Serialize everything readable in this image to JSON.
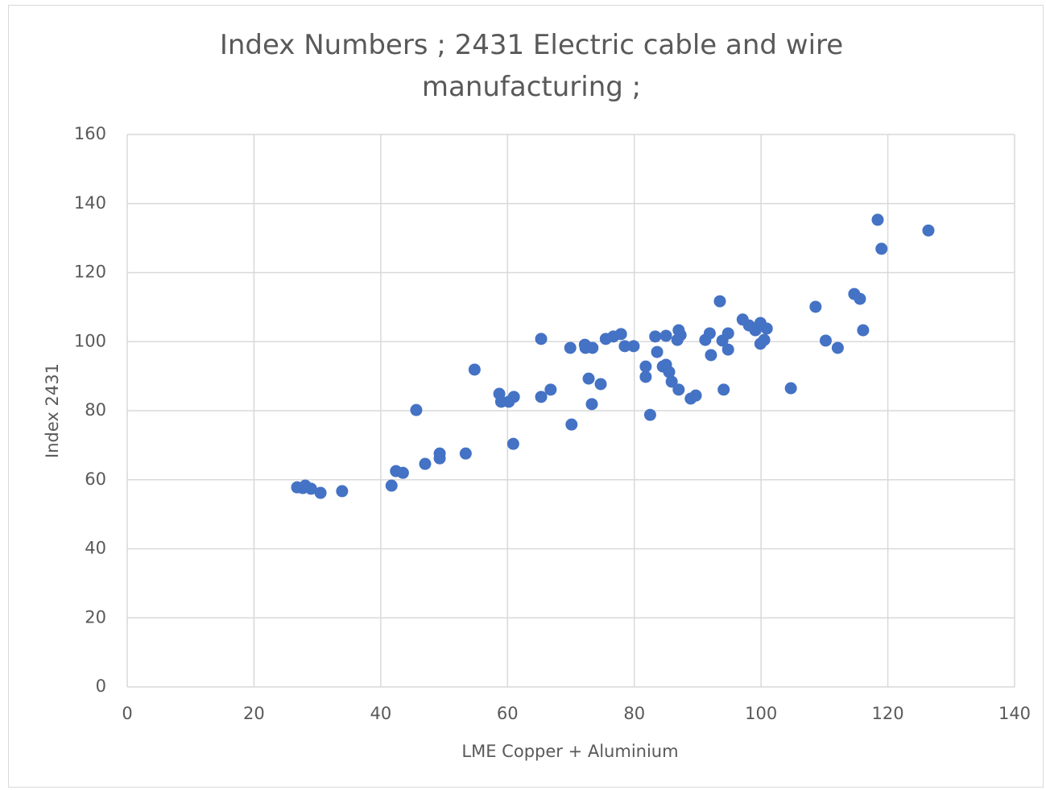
{
  "chart_data": {
    "type": "scatter",
    "title": "Index Numbers ;  2431 Electric cable and wire manufacturing ;",
    "x_label": "LME Copper + Aluminium",
    "y_label": "Index 2431",
    "color": "#4472c4",
    "grid": true,
    "xlim": [
      0,
      140
    ],
    "xticks": [
      0,
      20,
      40,
      60,
      80,
      100,
      120,
      140
    ],
    "ylim": [
      0,
      160
    ],
    "yticks": [
      0,
      20,
      40,
      60,
      80,
      100,
      120,
      140,
      160
    ],
    "x": [
      26.8,
      27.7,
      28.1,
      29.0,
      30.5,
      33.9,
      41.7,
      42.4,
      43.5,
      45.6,
      47.0,
      49.3,
      49.3,
      53.4,
      54.8,
      58.7,
      59.0,
      60.2,
      61.0,
      60.9,
      65.3,
      65.3,
      66.8,
      69.9,
      70.1,
      72.2,
      72.3,
      73.4,
      72.8,
      73.3,
      74.7,
      75.5,
      76.7,
      77.9,
      78.5,
      79.9,
      81.8,
      81.8,
      82.5,
      83.3,
      83.6,
      84.5,
      85.0,
      85.0,
      85.5,
      85.9,
      86.8,
      87.0,
      87.3,
      87.0,
      88.9,
      89.7,
      91.2,
      91.9,
      92.1,
      93.5,
      93.9,
      94.1,
      94.8,
      94.8,
      97.1,
      98.1,
      99.1,
      99.9,
      99.9,
      100.5,
      100.9,
      104.7,
      108.6,
      110.2,
      112.1,
      114.7,
      115.6,
      116.1,
      118.4,
      119.0,
      126.4
    ],
    "values": [
      57.8,
      57.6,
      58.3,
      57.4,
      56.2,
      56.7,
      58.3,
      62.5,
      62.0,
      80.2,
      64.6,
      66.2,
      67.6,
      67.6,
      91.9,
      84.9,
      82.6,
      82.6,
      84.0,
      70.4,
      100.8,
      84.0,
      86.1,
      98.2,
      76.0,
      99.1,
      98.2,
      98.2,
      89.3,
      81.9,
      87.7,
      100.8,
      101.5,
      102.2,
      98.7,
      98.7,
      92.8,
      89.8,
      78.8,
      101.5,
      97.0,
      92.8,
      93.3,
      101.7,
      91.2,
      88.4,
      100.5,
      103.3,
      101.9,
      86.1,
      83.5,
      84.4,
      100.5,
      102.4,
      96.1,
      111.7,
      100.3,
      86.1,
      102.4,
      97.7,
      106.4,
      104.7,
      103.3,
      105.4,
      99.4,
      100.5,
      103.8,
      86.5,
      110.1,
      100.3,
      98.2,
      113.8,
      112.4,
      103.3,
      135.3,
      126.9,
      132.2
    ]
  }
}
